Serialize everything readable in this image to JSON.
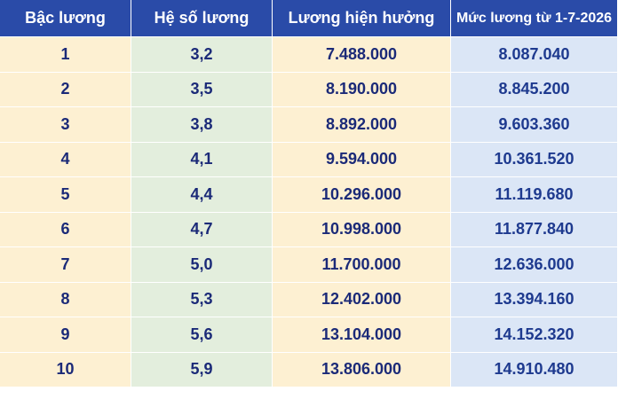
{
  "table": {
    "header": [
      "Bậc lương",
      "Hệ số lương",
      "Lương hiện hưởng",
      "Mức lương từ 1-7-2026"
    ],
    "rows": [
      [
        "1",
        "3,2",
        "7.488.000",
        "8.087.040"
      ],
      [
        "2",
        "3,5",
        "8.190.000",
        "8.845.200"
      ],
      [
        "3",
        "3,8",
        "8.892.000",
        "9.603.360"
      ],
      [
        "4",
        "4,1",
        "9.594.000",
        "10.361.520"
      ],
      [
        "5",
        "4,4",
        "10.296.000",
        "11.119.680"
      ],
      [
        "6",
        "4,7",
        "10.998.000",
        "11.877.840"
      ],
      [
        "7",
        "5,0",
        "11.700.000",
        "12.636.000"
      ],
      [
        "8",
        "5,3",
        "12.402.000",
        "13.394.160"
      ],
      [
        "9",
        "5,6",
        "13.104.000",
        "14.152.320"
      ],
      [
        "10",
        "5,9",
        "13.806.000",
        "14.910.480"
      ]
    ]
  }
}
